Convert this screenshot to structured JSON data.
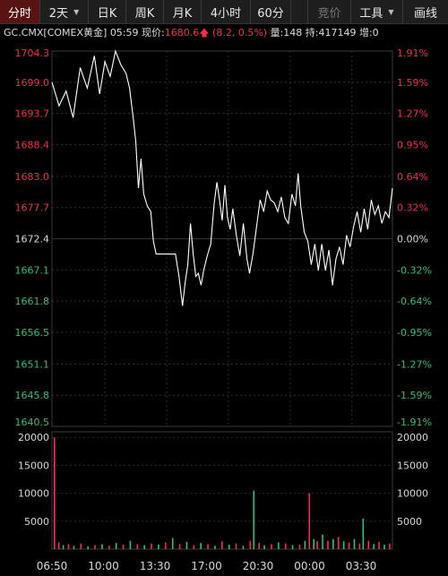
{
  "toolbar": {
    "tabs": [
      {
        "label": "分时",
        "active": true
      },
      {
        "label": "2天",
        "dropdown": true
      },
      {
        "label": "日K"
      },
      {
        "label": "周K"
      },
      {
        "label": "月K"
      },
      {
        "label": "4小时"
      },
      {
        "label": "60分"
      },
      {
        "label": "竞价",
        "disabled": true
      },
      {
        "label": "工具",
        "dropdown": true
      },
      {
        "label": "画线"
      }
    ]
  },
  "info": {
    "symbol": "GC.CMX[COMEX黄金]",
    "time": "05:59",
    "price_label": "现价:",
    "price": "1680.6",
    "change_text": "(8.2, 0.5%)",
    "volume": "量:148",
    "open_interest": "持:417149",
    "increase": "增:0"
  },
  "colors": {
    "up": "#f0304a",
    "down": "#2ec07a",
    "neutral": "#d8d8d8",
    "line": "#ffffff",
    "background": "#000000"
  },
  "chart_data": {
    "type": "line",
    "price_axis": {
      "ticks": [
        "1704.3",
        "1699.0",
        "1693.7",
        "1688.4",
        "1683.0",
        "1677.7",
        "1672.4",
        "1667.1",
        "1661.8",
        "1656.5",
        "1651.1",
        "1645.8",
        "1640.5"
      ],
      "pct_ticks": [
        "1.91%",
        "1.59%",
        "1.27%",
        "0.95%",
        "0.64%",
        "0.32%",
        "0.00%",
        "-0.32%",
        "-0.64%",
        "-0.95%",
        "-1.27%",
        "-1.59%",
        "-1.91%"
      ],
      "base": 1672.4,
      "ylim": [
        1640.5,
        1704.3
      ]
    },
    "volume_axis": {
      "ticks": [
        "20000",
        "15000",
        "10000",
        "5000"
      ],
      "right_ticks": [
        "20000",
        "15000",
        "10000",
        "5000"
      ],
      "ylim": [
        0,
        21000
      ]
    },
    "time_axis": {
      "ticks": [
        "06:50",
        "10:00",
        "13:30",
        "17:00",
        "20:30",
        "00:00",
        "03:30"
      ]
    },
    "price_series": [
      [
        0,
        1699.0
      ],
      [
        0.4,
        1695.0
      ],
      [
        0.8,
        1697.5
      ],
      [
        1.2,
        1693.0
      ],
      [
        1.6,
        1701.5
      ],
      [
        2.0,
        1698.0
      ],
      [
        2.4,
        1703.5
      ],
      [
        2.7,
        1697.0
      ],
      [
        3.0,
        1702.5
      ],
      [
        3.3,
        1700.0
      ],
      [
        3.6,
        1704.3
      ],
      [
        3.9,
        1702.0
      ],
      [
        4.2,
        1700.5
      ],
      [
        4.4,
        1698.0
      ],
      [
        4.6,
        1693.0
      ],
      [
        4.75,
        1689.0
      ],
      [
        4.9,
        1681.0
      ],
      [
        5.05,
        1686.0
      ],
      [
        5.2,
        1680.0
      ],
      [
        5.4,
        1678.0
      ],
      [
        5.6,
        1677.0
      ],
      [
        5.75,
        1672.0
      ],
      [
        5.9,
        1669.8
      ],
      [
        6.3,
        1669.8
      ],
      [
        6.8,
        1669.8
      ],
      [
        7.0,
        1669.8
      ],
      [
        7.2,
        1666.0
      ],
      [
        7.4,
        1661.0
      ],
      [
        7.55,
        1665.0
      ],
      [
        7.7,
        1668.0
      ],
      [
        7.85,
        1675.0
      ],
      [
        8.0,
        1670.0
      ],
      [
        8.15,
        1666.0
      ],
      [
        8.3,
        1666.5
      ],
      [
        8.45,
        1664.5
      ],
      [
        8.6,
        1667.0
      ],
      [
        8.8,
        1669.5
      ],
      [
        9.0,
        1671.5
      ],
      [
        9.2,
        1678.5
      ],
      [
        9.35,
        1682.0
      ],
      [
        9.5,
        1679.0
      ],
      [
        9.65,
        1675.5
      ],
      [
        9.8,
        1681.5
      ],
      [
        9.95,
        1676.0
      ],
      [
        10.1,
        1674.0
      ],
      [
        10.25,
        1677.5
      ],
      [
        10.45,
        1673.0
      ],
      [
        10.65,
        1669.5
      ],
      [
        10.85,
        1675.0
      ],
      [
        11.05,
        1669.0
      ],
      [
        11.2,
        1666.5
      ],
      [
        11.4,
        1670.0
      ],
      [
        11.6,
        1674.5
      ],
      [
        11.8,
        1679.0
      ],
      [
        12.0,
        1677.0
      ],
      [
        12.2,
        1680.5
      ],
      [
        12.4,
        1679.0
      ],
      [
        12.6,
        1678.5
      ],
      [
        12.8,
        1677.0
      ],
      [
        13.0,
        1679.5
      ],
      [
        13.2,
        1676.0
      ],
      [
        13.4,
        1675.0
      ],
      [
        13.6,
        1680.0
      ],
      [
        13.8,
        1678.0
      ],
      [
        13.95,
        1683.5
      ],
      [
        14.1,
        1678.0
      ],
      [
        14.3,
        1673.5
      ],
      [
        14.5,
        1672.0
      ],
      [
        14.7,
        1668.0
      ],
      [
        14.9,
        1671.5
      ],
      [
        15.1,
        1667.0
      ],
      [
        15.3,
        1671.5
      ],
      [
        15.5,
        1667.0
      ],
      [
        15.7,
        1670.5
      ],
      [
        15.9,
        1664.5
      ],
      [
        16.1,
        1669.0
      ],
      [
        16.3,
        1671.0
      ],
      [
        16.5,
        1668.0
      ],
      [
        16.7,
        1673.0
      ],
      [
        16.9,
        1671.0
      ],
      [
        17.1,
        1674.5
      ],
      [
        17.3,
        1677.0
      ],
      [
        17.5,
        1673.5
      ],
      [
        17.7,
        1677.5
      ],
      [
        17.9,
        1674.0
      ],
      [
        18.1,
        1679.0
      ],
      [
        18.3,
        1676.5
      ],
      [
        18.5,
        1678.0
      ],
      [
        18.7,
        1675.0
      ],
      [
        18.9,
        1677.0
      ],
      [
        19.1,
        1676.0
      ],
      [
        19.3,
        1681.0
      ]
    ],
    "volume_series": [
      [
        0.1,
        20000,
        "up"
      ],
      [
        0.35,
        1200,
        "up"
      ],
      [
        0.6,
        700,
        "down"
      ],
      [
        0.9,
        900,
        "up"
      ],
      [
        1.2,
        600,
        "down"
      ],
      [
        1.6,
        1000,
        "up"
      ],
      [
        2.0,
        500,
        "down"
      ],
      [
        2.4,
        700,
        "up"
      ],
      [
        2.8,
        900,
        "down"
      ],
      [
        3.2,
        600,
        "up"
      ],
      [
        3.6,
        1100,
        "down"
      ],
      [
        4.0,
        800,
        "up"
      ],
      [
        4.4,
        1500,
        "down"
      ],
      [
        4.8,
        900,
        "up"
      ],
      [
        5.2,
        700,
        "down"
      ],
      [
        5.6,
        1000,
        "up"
      ],
      [
        6.0,
        800,
        "down"
      ],
      [
        6.4,
        1200,
        "up"
      ],
      [
        6.8,
        2000,
        "down"
      ],
      [
        7.2,
        900,
        "up"
      ],
      [
        7.6,
        1300,
        "down"
      ],
      [
        8.0,
        700,
        "up"
      ],
      [
        8.4,
        1100,
        "down"
      ],
      [
        8.8,
        900,
        "up"
      ],
      [
        9.2,
        600,
        "down"
      ],
      [
        9.6,
        1400,
        "up"
      ],
      [
        10.0,
        800,
        "down"
      ],
      [
        10.4,
        1000,
        "up"
      ],
      [
        10.8,
        600,
        "down"
      ],
      [
        11.2,
        1500,
        "up"
      ],
      [
        11.4,
        10500,
        "down"
      ],
      [
        11.7,
        1100,
        "up"
      ],
      [
        12.0,
        700,
        "down"
      ],
      [
        12.4,
        900,
        "up"
      ],
      [
        12.8,
        1200,
        "down"
      ],
      [
        13.2,
        1000,
        "up"
      ],
      [
        13.6,
        700,
        "down"
      ],
      [
        14.0,
        800,
        "up"
      ],
      [
        14.3,
        1500,
        "down"
      ],
      [
        14.55,
        10000,
        "up"
      ],
      [
        14.8,
        1800,
        "down"
      ],
      [
        15.0,
        1400,
        "up"
      ],
      [
        15.3,
        2600,
        "down"
      ],
      [
        15.6,
        1500,
        "up"
      ],
      [
        15.9,
        1800,
        "down"
      ],
      [
        16.2,
        2200,
        "up"
      ],
      [
        16.5,
        1400,
        "down"
      ],
      [
        16.8,
        1200,
        "up"
      ],
      [
        17.1,
        1800,
        "down"
      ],
      [
        17.4,
        1000,
        "up"
      ],
      [
        17.6,
        5500,
        "down"
      ],
      [
        17.9,
        1500,
        "up"
      ],
      [
        18.2,
        900,
        "down"
      ],
      [
        18.5,
        1300,
        "up"
      ],
      [
        18.8,
        800,
        "down"
      ],
      [
        19.1,
        1000,
        "up"
      ]
    ]
  }
}
